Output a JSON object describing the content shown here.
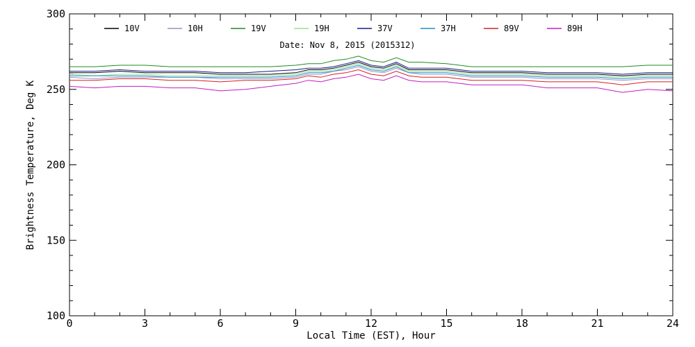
{
  "chart_data": {
    "type": "line",
    "title": "Date: Nov  8, 2015 (2015312)",
    "xlabel": "Local Time (EST), Hour",
    "ylabel": "Brightness Temperature, Deg K",
    "xlim": [
      0,
      24
    ],
    "ylim": [
      100,
      300
    ],
    "xticks": [
      0,
      3,
      6,
      9,
      12,
      15,
      18,
      21,
      24
    ],
    "yticks": [
      100,
      150,
      200,
      250,
      300
    ],
    "grid": false,
    "legend_position": "top",
    "series": [
      {
        "name": "10V",
        "color": "#000000",
        "x": [
          0,
          1,
          2,
          3,
          4,
          5,
          6,
          7,
          8,
          9,
          9.5,
          10,
          10.5,
          11,
          11.5,
          12,
          12.5,
          13,
          13.5,
          14,
          15,
          16,
          17,
          18,
          19,
          20,
          21,
          22,
          23,
          24
        ],
        "y": [
          261,
          261,
          262,
          261,
          261,
          261,
          260,
          260,
          260,
          261,
          263,
          263,
          264,
          266,
          268,
          265,
          264,
          267,
          263,
          263,
          263,
          261,
          261,
          261,
          260,
          260,
          260,
          259,
          260,
          260
        ]
      },
      {
        "name": "10H",
        "color": "#9a8fc7",
        "x": [
          0,
          1,
          2,
          3,
          4,
          5,
          6,
          7,
          8,
          9,
          9.5,
          10,
          10.5,
          11,
          11.5,
          12,
          12.5,
          13,
          13.5,
          14,
          15,
          16,
          17,
          18,
          19,
          20,
          21,
          22,
          23,
          24
        ],
        "y": [
          258,
          257,
          258,
          258,
          258,
          258,
          257,
          257,
          257,
          258,
          260,
          260,
          262,
          263,
          265,
          262,
          261,
          264,
          261,
          260,
          260,
          258,
          258,
          258,
          257,
          257,
          257,
          256,
          257,
          257
        ]
      },
      {
        "name": "19V",
        "color": "#1e8c1e",
        "x": [
          0,
          1,
          2,
          3,
          4,
          5,
          6,
          7,
          8,
          9,
          9.5,
          10,
          10.5,
          11,
          11.5,
          12,
          12.5,
          13,
          13.5,
          14,
          15,
          16,
          17,
          18,
          19,
          20,
          21,
          22,
          23,
          24
        ],
        "y": [
          265,
          265,
          266,
          266,
          265,
          265,
          265,
          265,
          265,
          266,
          267,
          267,
          269,
          270,
          272,
          269,
          268,
          271,
          268,
          268,
          267,
          265,
          265,
          265,
          265,
          265,
          265,
          265,
          266,
          266
        ]
      },
      {
        "name": "19H",
        "color": "#8fe08f",
        "x": [
          0,
          1,
          2,
          3,
          4,
          5,
          6,
          7,
          8,
          9,
          9.5,
          10,
          10.5,
          11,
          11.5,
          12,
          12.5,
          13,
          13.5,
          14,
          15,
          16,
          17,
          18,
          19,
          20,
          21,
          22,
          23,
          24
        ],
        "y": [
          260,
          259,
          260,
          260,
          259,
          259,
          259,
          259,
          259,
          260,
          262,
          262,
          263,
          265,
          267,
          264,
          263,
          266,
          262,
          262,
          262,
          260,
          260,
          260,
          259,
          259,
          259,
          258,
          259,
          259
        ]
      },
      {
        "name": "37V",
        "color": "#1a1a8a",
        "x": [
          0,
          1,
          2,
          3,
          4,
          5,
          6,
          7,
          8,
          9,
          9.5,
          10,
          10.5,
          11,
          11.5,
          12,
          12.5,
          13,
          13.5,
          14,
          15,
          16,
          17,
          18,
          19,
          20,
          21,
          22,
          23,
          24
        ],
        "y": [
          262,
          262,
          263,
          262,
          262,
          262,
          261,
          261,
          262,
          263,
          264,
          264,
          265,
          267,
          269,
          266,
          265,
          268,
          264,
          264,
          264,
          262,
          262,
          262,
          261,
          261,
          261,
          260,
          261,
          261
        ]
      },
      {
        "name": "37H",
        "color": "#1f8fc7",
        "x": [
          0,
          1,
          2,
          3,
          4,
          5,
          6,
          7,
          8,
          9,
          9.5,
          10,
          10.5,
          11,
          11.5,
          12,
          12.5,
          13,
          13.5,
          14,
          15,
          16,
          17,
          18,
          19,
          20,
          21,
          22,
          23,
          24
        ],
        "y": [
          259,
          259,
          259,
          259,
          258,
          258,
          258,
          258,
          258,
          259,
          261,
          261,
          262,
          264,
          266,
          263,
          262,
          265,
          261,
          261,
          261,
          259,
          259,
          259,
          258,
          258,
          258,
          257,
          258,
          258
        ]
      },
      {
        "name": "89V",
        "color": "#d42020",
        "x": [
          0,
          1,
          2,
          3,
          4,
          5,
          6,
          7,
          8,
          9,
          9.5,
          10,
          10.5,
          11,
          11.5,
          12,
          12.5,
          13,
          13.5,
          14,
          15,
          16,
          17,
          18,
          19,
          20,
          21,
          22,
          23,
          24
        ],
        "y": [
          256,
          256,
          257,
          257,
          256,
          256,
          255,
          256,
          256,
          257,
          259,
          258,
          260,
          261,
          263,
          260,
          259,
          262,
          259,
          258,
          258,
          256,
          256,
          256,
          255,
          255,
          255,
          253,
          255,
          255
        ]
      },
      {
        "name": "89H",
        "color": "#c21bc2",
        "x": [
          0,
          1,
          2,
          3,
          4,
          5,
          6,
          7,
          8,
          9,
          9.5,
          10,
          10.5,
          11,
          11.5,
          12,
          12.5,
          13,
          13.5,
          14,
          15,
          16,
          17,
          18,
          19,
          20,
          21,
          22,
          23,
          24
        ],
        "y": [
          252,
          251,
          252,
          252,
          251,
          251,
          249,
          250,
          252,
          254,
          256,
          255,
          257,
          258,
          260,
          257,
          256,
          259,
          256,
          255,
          255,
          253,
          253,
          253,
          251,
          251,
          251,
          248,
          250,
          249
        ]
      }
    ]
  }
}
